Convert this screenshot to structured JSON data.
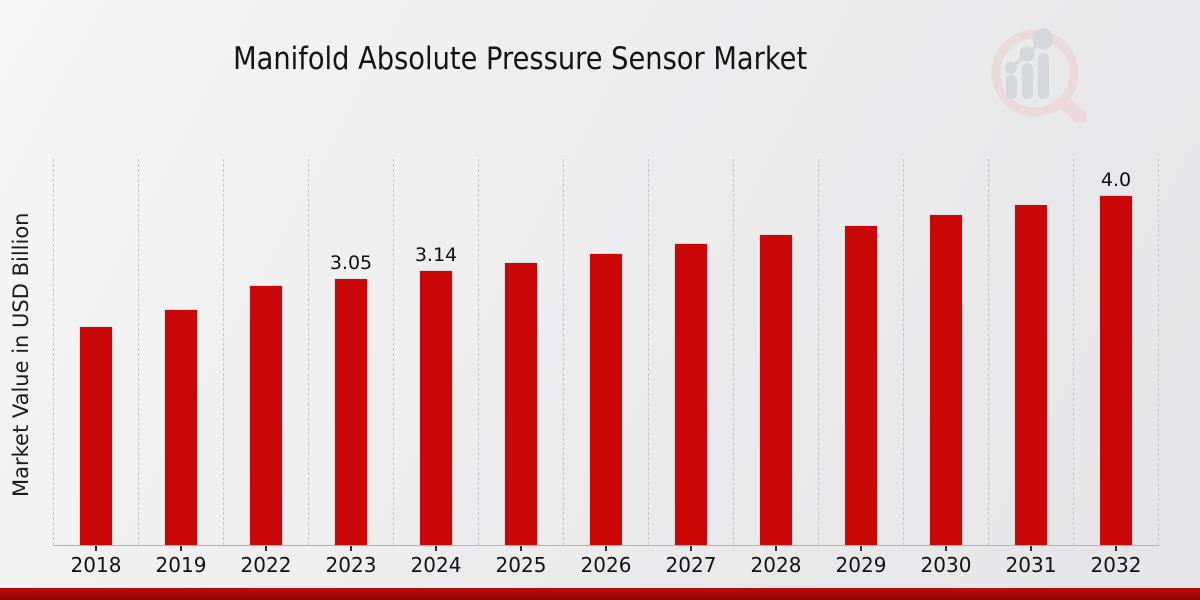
{
  "title": "Manifold Absolute Pressure Sensor Market",
  "ylabel": "Market Value in USD Billion",
  "watermark_icon": "magnifier-bar-chart-logo",
  "colors": {
    "bar": "#ca0707",
    "bar_edge": "#dedede",
    "gridline": "#c6c6c6",
    "axis_line": "#b2b2b2",
    "footer_band_top": "#bd0b0b",
    "footer_band_bottom": "#8e0404",
    "background": "#ececee",
    "text": "#141414"
  },
  "chart_data": {
    "type": "bar",
    "title": "Manifold Absolute Pressure Sensor Market",
    "xlabel": "",
    "ylabel": "Market Value in USD Billion",
    "categories": [
      "2018",
      "2019",
      "2022",
      "2023",
      "2024",
      "2025",
      "2026",
      "2027",
      "2028",
      "2029",
      "2030",
      "2031",
      "2032"
    ],
    "values": [
      2.5,
      2.7,
      2.97,
      3.05,
      3.14,
      3.23,
      3.34,
      3.45,
      3.55,
      3.66,
      3.78,
      3.89,
      4.0
    ],
    "data_labels": [
      null,
      null,
      null,
      "3.05",
      "3.14",
      null,
      null,
      null,
      null,
      null,
      null,
      null,
      "4.0"
    ],
    "ylim": [
      0,
      4.42
    ],
    "bar_color": "#ca0707",
    "grid": "vertical-dashed",
    "legend": "none"
  }
}
